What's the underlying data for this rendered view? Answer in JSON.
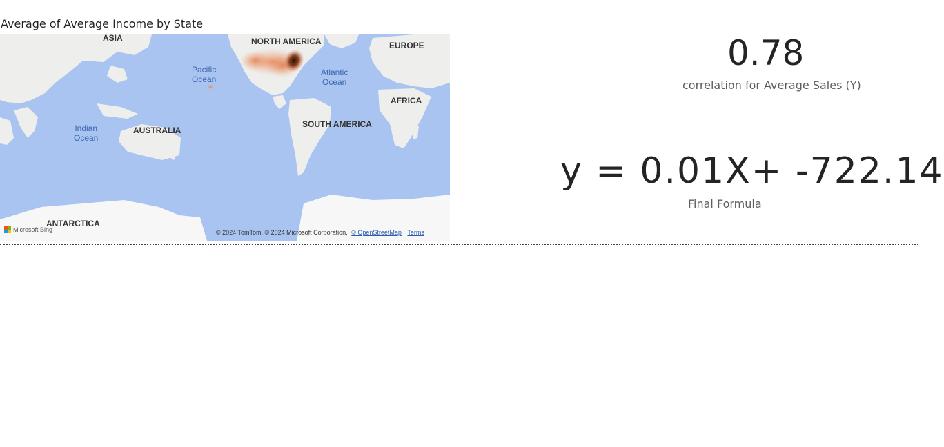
{
  "map_visual": {
    "title": "Average of Average Income by State",
    "continents": {
      "asia": "ASIA",
      "north_america": "NORTH AMERICA",
      "europe": "EUROPE",
      "africa": "AFRICA",
      "australia": "AUSTRALIA",
      "south_america": "SOUTH AMERICA",
      "antarctica": "ANTARCTICA"
    },
    "oceans": {
      "pacific_line1": "Pacific",
      "pacific_line2": "Ocean",
      "atlantic_line1": "Atlantic",
      "atlantic_line2": "Ocean",
      "indian_line1": "Indian",
      "indian_line2": "Ocean"
    },
    "attribution": {
      "text": "© 2024 TomTom, © 2024 Microsoft Corporation,",
      "osm_link": "© OpenStreetMap",
      "terms_link": "Terms"
    },
    "provider": "Microsoft Bing",
    "colors": {
      "water": "#a9c4f0",
      "land": "#eeeeec",
      "heat_low": "#f4b08a",
      "heat_high": "#3a1a0a"
    }
  },
  "correlation_card": {
    "value": "0.78",
    "label": "correlation for Average Sales (Y)"
  },
  "formula_card": {
    "value": "y = 0.01X+ -722.14",
    "label": "Final Formula"
  }
}
